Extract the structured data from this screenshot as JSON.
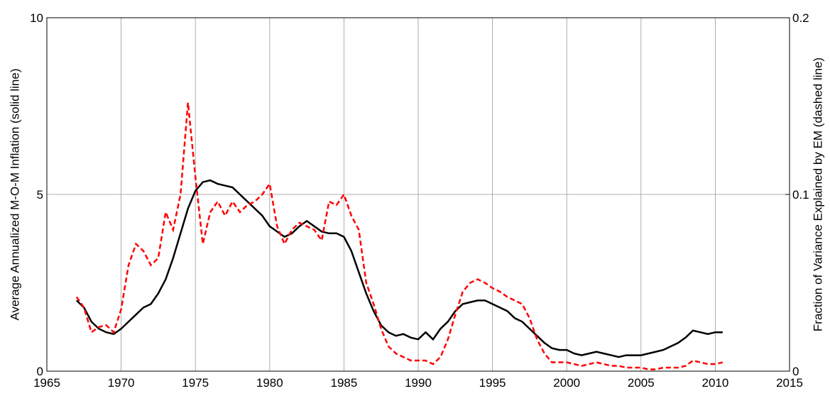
{
  "chart_data": {
    "type": "line",
    "y_label": "Average Annualized M-O-M Inflation (solid line)",
    "y2_label": "Fraction of Variance Explained by EM (dashed line)",
    "x": [
      1967,
      1967.5,
      1968,
      1968.5,
      1969,
      1969.5,
      1970,
      1970.5,
      1971,
      1971.5,
      1972,
      1972.5,
      1973,
      1973.5,
      1974,
      1974.5,
      1975,
      1975.5,
      1976,
      1976.5,
      1977,
      1977.5,
      1978,
      1978.5,
      1979,
      1979.5,
      1980,
      1980.5,
      1981,
      1981.5,
      1982,
      1982.5,
      1983,
      1983.5,
      1984,
      1984.5,
      1985,
      1985.5,
      1986,
      1986.5,
      1987,
      1987.5,
      1988,
      1988.5,
      1989,
      1989.5,
      1990,
      1990.5,
      1991,
      1991.5,
      1992,
      1992.5,
      1993,
      1993.5,
      1994,
      1994.5,
      1995,
      1995.5,
      1996,
      1996.5,
      1997,
      1997.5,
      1998,
      1998.5,
      1999,
      1999.5,
      2000,
      2000.5,
      2001,
      2001.5,
      2002,
      2002.5,
      2003,
      2003.5,
      2004,
      2004.5,
      2005,
      2005.5,
      2006,
      2006.5,
      2007,
      2007.5,
      2008,
      2008.5,
      2009,
      2009.5,
      2010,
      2010.5
    ],
    "series": [
      {
        "color": "#000000",
        "dash": false,
        "values": [
          2.0,
          1.8,
          1.4,
          1.2,
          1.1,
          1.05,
          1.2,
          1.4,
          1.6,
          1.8,
          1.9,
          2.2,
          2.6,
          3.2,
          3.9,
          4.6,
          5.1,
          5.35,
          5.4,
          5.3,
          5.25,
          5.2,
          5.0,
          4.8,
          4.6,
          4.4,
          4.1,
          3.95,
          3.8,
          3.9,
          4.1,
          4.25,
          4.1,
          3.95,
          3.9,
          3.9,
          3.8,
          3.4,
          2.8,
          2.2,
          1.7,
          1.3,
          1.1,
          1.0,
          1.05,
          0.95,
          0.9,
          1.1,
          0.9,
          1.2,
          1.4,
          1.7,
          1.9,
          1.95,
          2.0,
          2.0,
          1.9,
          1.8,
          1.7,
          1.5,
          1.4,
          1.2,
          1.0,
          0.8,
          0.65,
          0.6,
          0.6,
          0.5,
          0.45,
          0.5,
          0.55,
          0.5,
          0.45,
          0.4,
          0.45,
          0.45,
          0.45,
          0.5,
          0.55,
          0.6,
          0.7,
          0.8,
          0.95,
          1.15,
          1.1,
          1.05,
          1.1,
          1.1
        ]
      },
      {
        "color": "#ff0000",
        "dash": true,
        "axis": "y2",
        "values": [
          0.042,
          0.036,
          0.022,
          0.025,
          0.026,
          0.022,
          0.035,
          0.06,
          0.072,
          0.068,
          0.06,
          0.064,
          0.09,
          0.08,
          0.1,
          0.152,
          0.11,
          0.072,
          0.09,
          0.096,
          0.088,
          0.096,
          0.09,
          0.094,
          0.096,
          0.1,
          0.106,
          0.082,
          0.072,
          0.08,
          0.084,
          0.082,
          0.08,
          0.074,
          0.096,
          0.094,
          0.1,
          0.088,
          0.08,
          0.05,
          0.038,
          0.024,
          0.014,
          0.01,
          0.008,
          0.006,
          0.006,
          0.006,
          0.004,
          0.008,
          0.018,
          0.032,
          0.045,
          0.05,
          0.052,
          0.05,
          0.047,
          0.045,
          0.042,
          0.04,
          0.038,
          0.03,
          0.018,
          0.01,
          0.005,
          0.005,
          0.005,
          0.004,
          0.003,
          0.004,
          0.005,
          0.004,
          0.003,
          0.003,
          0.002,
          0.002,
          0.002,
          0.001,
          0.001,
          0.002,
          0.002,
          0.002,
          0.003,
          0.006,
          0.005,
          0.004,
          0.004,
          0.005
        ]
      }
    ],
    "xlim": [
      1965,
      2015
    ],
    "xticks": [
      1965,
      1970,
      1975,
      1980,
      1985,
      1990,
      1995,
      2000,
      2005,
      2010,
      2015
    ],
    "ylim": [
      0,
      10
    ],
    "yticks": [
      0,
      5,
      10
    ],
    "y2lim": [
      0,
      0.2
    ],
    "y2ticks": [
      0,
      0.1,
      0.2
    ],
    "grid": true
  }
}
